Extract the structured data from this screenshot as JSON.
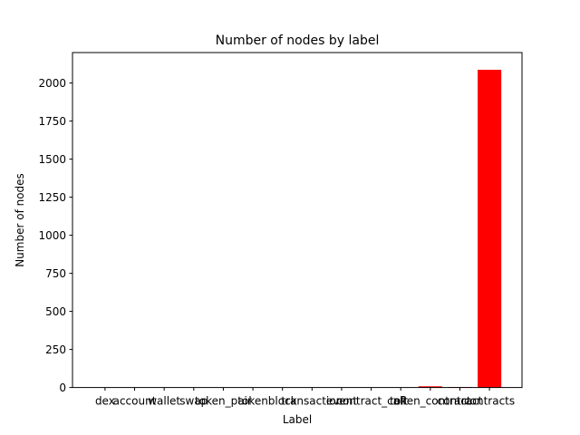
{
  "chart_data": {
    "type": "bar",
    "title": "Number of nodes by label",
    "xlabel": "Label",
    "ylabel": "Number of nodes",
    "categories": [
      "dex",
      "account",
      "wallet",
      "swap",
      "token_pair",
      "token",
      "block",
      "transaction",
      "event",
      "contract_call",
      "nft",
      "token_contract",
      "contract",
      "contracts"
    ],
    "values": [
      0,
      0,
      0,
      0,
      0,
      0,
      0,
      0,
      0,
      0,
      0,
      8,
      3,
      2087
    ],
    "bar_color": "#ff0000",
    "ylim": [
      0,
      2200
    ],
    "yticks": [
      0,
      250,
      500,
      750,
      1000,
      1250,
      1500,
      1750,
      2000
    ],
    "grid": false,
    "legend": false
  }
}
